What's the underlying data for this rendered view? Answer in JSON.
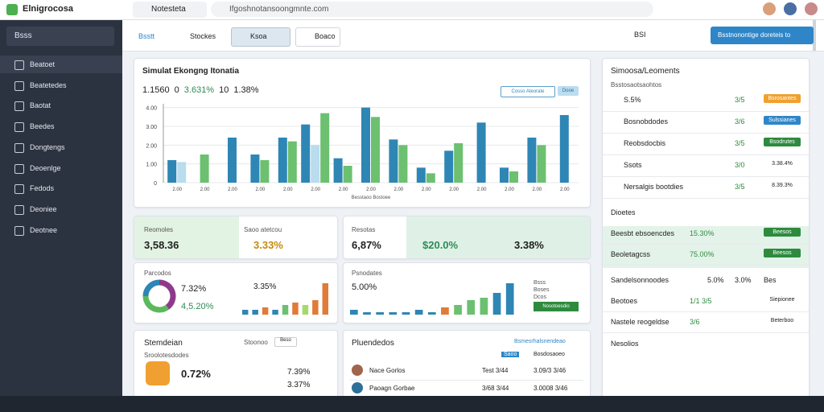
{
  "browser": {
    "logo": "Elnigrocosa",
    "tab": "Notesteta",
    "url": "Ifgoshnotansoongmnte.com"
  },
  "sidebar": {
    "header": "Bsss",
    "items": [
      "Beatoet",
      "Beatetedes",
      "Baotat",
      "Beedes",
      "Dongtengs",
      "Deoenlge",
      "Fedods",
      "Deoniee",
      "Deotnee"
    ]
  },
  "topbar": {
    "tabs": [
      "Bsstt",
      "Stockes",
      "Ksoa",
      "Boaco"
    ],
    "count": "BSI",
    "button": "Bsstnonontige doreteis to"
  },
  "main_card": {
    "title": "Simulat Ekongng Itonatia",
    "stats": [
      "1.1560",
      "0",
      "3.631%",
      "10",
      "1.38%"
    ],
    "buttons": [
      "Cosso Ateorate",
      "Dooe"
    ],
    "caption": "Besstaoo Bostoee"
  },
  "chart_data": [
    {
      "type": "bar",
      "categories": [
        "2.00",
        "2.00",
        "2.00",
        "2.00",
        "2.00",
        "2.00",
        "2.00",
        "2.00",
        "2.00",
        "2.00",
        "2.00",
        "2.00",
        "2.00",
        "2.00",
        "2.00"
      ],
      "series": [
        {
          "color": "#2e86b5",
          "values": [
            1.2,
            null,
            2.4,
            1.5,
            2.4,
            3.1,
            1.3,
            4.0,
            2.3,
            0.8,
            1.7,
            3.2,
            0.8,
            2.4,
            3.6
          ]
        },
        {
          "color": "#b9dcee",
          "values": [
            1.1,
            null,
            null,
            null,
            null,
            2.0,
            null,
            null,
            null,
            null,
            null,
            null,
            null,
            null,
            null
          ]
        },
        {
          "color": "#6cc070",
          "values": [
            null,
            1.5,
            null,
            1.2,
            2.2,
            3.7,
            0.9,
            3.5,
            2.0,
            0.5,
            2.1,
            null,
            0.6,
            2.0,
            null
          ]
        }
      ],
      "ylim": [
        0,
        4.2
      ],
      "yticks": [
        0,
        {
          "value": 1,
          "label": "1.00"
        },
        {
          "value": 2,
          "label": "2.00"
        },
        {
          "value": 3,
          "label": "3.00"
        },
        {
          "value": 4,
          "label": "4.00"
        }
      ]
    },
    {
      "type": "pie",
      "donut": true,
      "values": [
        40,
        35,
        25
      ],
      "colors": [
        "#8e3a8c",
        "#5cb85c",
        "#2e86b5"
      ]
    },
    {
      "type": "bar",
      "values": [
        2,
        2,
        3,
        2,
        4,
        5,
        4,
        6,
        13
      ],
      "colors": [
        "#2e86b5",
        "#2e86b5",
        "#e07b39",
        "#2e86b5",
        "#6cc070",
        "#e07b39",
        "#a6d96a",
        "#e07b39",
        "#e07b39"
      ]
    },
    {
      "type": "bar",
      "values": [
        2,
        1,
        1,
        1,
        1,
        2,
        1,
        3,
        4,
        6,
        7,
        9,
        13
      ],
      "colors": [
        "#2e86b5",
        "#2e86b5",
        "#2e86b5",
        "#2e86b5",
        "#2e86b5",
        "#2e86b5",
        "#2e86b5",
        "#e07b39",
        "#6cc070",
        "#6cc070",
        "#6cc070",
        "#2e86b5",
        "#2e86b5"
      ]
    }
  ],
  "kpis": {
    "a_label": "Reomoles",
    "a_value": "3,58.36",
    "b_label": "Saoo atetcou",
    "b_value": "3.33%",
    "c_label": "Resotas",
    "c_value": "6,87%",
    "d_value": "$20.0%",
    "e_value": "3.38%"
  },
  "donut_card": {
    "title": "Parcodos",
    "v1": "7.32%",
    "v2": "4,5.20%",
    "v3": "3.35%"
  },
  "growth_card": {
    "title": "Psnodates",
    "value": "5.00%",
    "legend": [
      "Bsss",
      "Boses",
      "Dcos"
    ],
    "button": "Nosotoesdio"
  },
  "bottom_left": {
    "title": "Stemdeian",
    "sub": "Sroolotesdodes",
    "badge": "0.72%",
    "head": "Stoonoo",
    "v1": "7.39%",
    "v2": "3.37%",
    "tag": "Beso"
  },
  "bottom_right": {
    "title": "Pluendedos",
    "link": "Bsmesrhalsnendeao",
    "header": [
      "Saoo",
      "Bosdosaoeo"
    ],
    "rows": [
      [
        "Nace Gorlos",
        "Test 3/44",
        "3.09/3 3/46"
      ],
      [
        "Paoagn Gorbae",
        "3/68 3/44",
        "3.0008 3/46"
      ]
    ]
  },
  "right_panel": {
    "title": "Simoosa/Leoments",
    "subtitle": "Bsstosaotsaohtos",
    "rows": [
      [
        "S.5%",
        "3/5",
        "Bsrosantes"
      ],
      [
        "Bosnobdodes",
        "3/6",
        "Sulssianes"
      ],
      [
        "Reobsdocbis",
        "3/5",
        "Bsodrutes"
      ],
      [
        "Ssots",
        "3/0",
        "3.38.4%"
      ],
      [
        "Nersalgis bootdies",
        "3/5",
        "8.39.3%"
      ]
    ],
    "section1": "Dioetes",
    "rows2": [
      [
        "Beesbt ebsoencdes",
        "15.30%",
        "Beesos"
      ],
      [
        "Beoletagcss",
        "75.00%",
        "Beesos"
      ]
    ],
    "section2": "Sandelsonnoodes",
    "s2v": [
      "5.0%",
      "3.0%",
      "Bes"
    ],
    "rows3": [
      [
        "Beotoes",
        "1/1 3/5",
        "Siepionee"
      ],
      [
        "Nastele reogeldse",
        "3/6",
        "Beterboo"
      ]
    ],
    "section3": "Nesolios"
  }
}
